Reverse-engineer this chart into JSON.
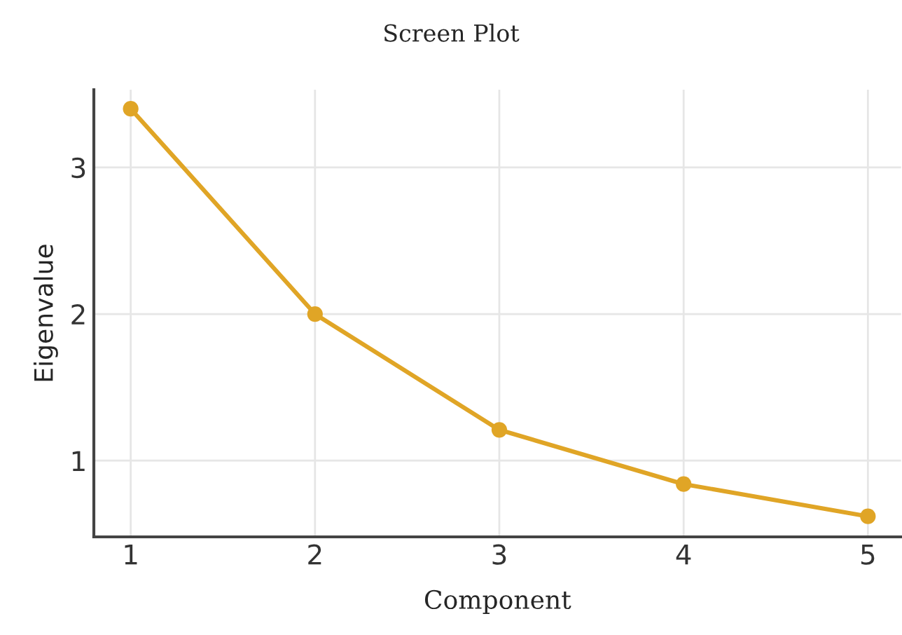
{
  "chart_data": {
    "type": "line",
    "title": "Screen Plot",
    "xlabel": "Component",
    "ylabel": "Eigenvalue",
    "x": [
      1,
      2,
      3,
      4,
      5
    ],
    "series": [
      {
        "color": "#e0a526",
        "values": [
          3.4,
          2.0,
          1.21,
          0.84,
          0.62
        ]
      }
    ],
    "xlim": [
      0.8,
      5.18
    ],
    "xticks": [
      1,
      2,
      3,
      4,
      5
    ],
    "ylim": [
      0.48,
      3.53
    ],
    "yticks": [
      1,
      2,
      3
    ],
    "grid": true,
    "marker": "circle",
    "line_style": "solid"
  }
}
